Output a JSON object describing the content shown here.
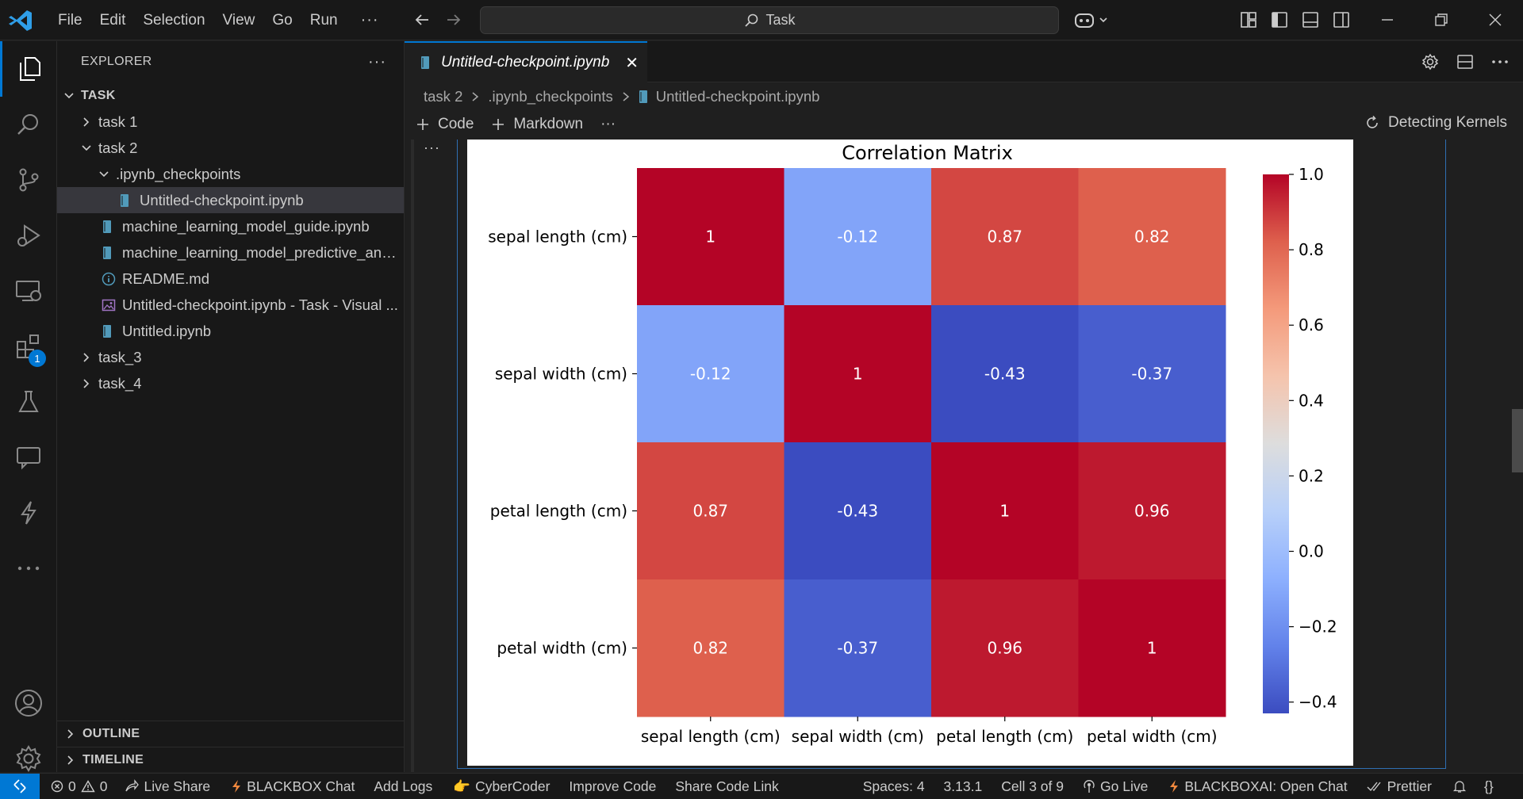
{
  "titlebar": {
    "menu": [
      "File",
      "Edit",
      "Selection",
      "View",
      "Go",
      "Run"
    ],
    "more": "···",
    "search_label": "Task"
  },
  "activity": {
    "icons": [
      "explorer-icon",
      "search-icon",
      "source-control-icon",
      "run-debug-icon",
      "remote-explorer-icon",
      "extensions-icon",
      "testing-icon",
      "chat-icon",
      "blackbox-icon",
      "more-icon"
    ],
    "extensions_badge": "1",
    "bottom_icons": [
      "account-icon",
      "settings-gear-icon"
    ]
  },
  "sidebar": {
    "title": "EXPLORER",
    "more": "···",
    "root": "TASK",
    "items": [
      {
        "label": "task 1",
        "type": "folder",
        "expanded": false,
        "depth": 1
      },
      {
        "label": "task 2",
        "type": "folder",
        "expanded": true,
        "depth": 1
      },
      {
        "label": ".ipynb_checkpoints",
        "type": "folder",
        "expanded": true,
        "depth": 2
      },
      {
        "label": "Untitled-checkpoint.ipynb",
        "type": "notebook",
        "depth": 3,
        "selected": true
      },
      {
        "label": "machine_learning_model_guide.ipynb",
        "type": "notebook",
        "depth": 2
      },
      {
        "label": "machine_learning_model_predictive_analy...",
        "type": "notebook",
        "depth": 2
      },
      {
        "label": "README.md",
        "type": "info",
        "depth": 2
      },
      {
        "label": "Untitled-checkpoint.ipynb - Task - Visual ...",
        "type": "image",
        "depth": 2
      },
      {
        "label": "Untitled.ipynb",
        "type": "notebook",
        "depth": 2
      },
      {
        "label": "task_3",
        "type": "folder",
        "expanded": false,
        "depth": 1
      },
      {
        "label": "task_4",
        "type": "folder",
        "expanded": false,
        "depth": 1
      }
    ],
    "outline": "OUTLINE",
    "timeline": "TIMELINE"
  },
  "editor": {
    "tab_label": "Untitled-checkpoint.ipynb",
    "tab_close": "✕",
    "breadcrumb": [
      "task 2",
      ".ipynb_checkpoints",
      "Untitled-checkpoint.ipynb"
    ],
    "toolbar": {
      "code": "Code",
      "markdown": "Markdown",
      "more": "···"
    },
    "kernel_status": "Detecting Kernels",
    "cell_more": "···"
  },
  "chart_data": {
    "type": "heatmap",
    "title": "Correlation Matrix",
    "x_categories": [
      "sepal length (cm)",
      "sepal width (cm)",
      "petal length (cm)",
      "petal width (cm)"
    ],
    "y_categories": [
      "sepal length (cm)",
      "sepal width (cm)",
      "petal length (cm)",
      "petal width (cm)"
    ],
    "values": [
      [
        1,
        -0.12,
        0.87,
        0.82
      ],
      [
        -0.12,
        1,
        -0.43,
        -0.37
      ],
      [
        0.87,
        -0.43,
        1,
        0.96
      ],
      [
        0.82,
        -0.37,
        0.96,
        1
      ]
    ],
    "annotations": [
      [
        "1",
        "-0.12",
        "0.87",
        "0.82"
      ],
      [
        "-0.12",
        "1",
        "-0.43",
        "-0.37"
      ],
      [
        "0.87",
        "-0.43",
        "1",
        "0.96"
      ],
      [
        "0.82",
        "-0.37",
        "0.96",
        "1"
      ]
    ],
    "colormap": "coolwarm",
    "colorbar_range": [
      -0.43,
      1.0
    ],
    "colorbar_ticks": [
      "1.0",
      "0.8",
      "0.6",
      "0.4",
      "0.2",
      "0.0",
      "−0.2",
      "−0.4"
    ],
    "colorbar_tick_values": [
      1.0,
      0.8,
      0.6,
      0.4,
      0.2,
      0.0,
      -0.2,
      -0.4
    ],
    "legend": "colorbar-right"
  },
  "statusbar": {
    "errors": "0",
    "warnings": "0",
    "live_share": "Live Share",
    "blackbox_chat": "BLACKBOX Chat",
    "add_logs": "Add Logs",
    "cybercoder": "CyberCoder",
    "improve_code": "Improve Code",
    "share_code_link": "Share Code Link",
    "spaces": "Spaces: 4",
    "python_version": "3.13.1",
    "cell_position": "Cell 3 of 9",
    "go_live": "Go Live",
    "blackboxai": "BLACKBOXAI: Open Chat",
    "prettier": "Prettier",
    "braces": "{}"
  },
  "colors": {
    "accent": "#0078d4",
    "background": "#1f1f1f",
    "sidebar_bg": "#181818",
    "notebook_icon": "#519aba",
    "image_icon": "#a074c4",
    "blackbox_bolt": "#f0883e"
  }
}
